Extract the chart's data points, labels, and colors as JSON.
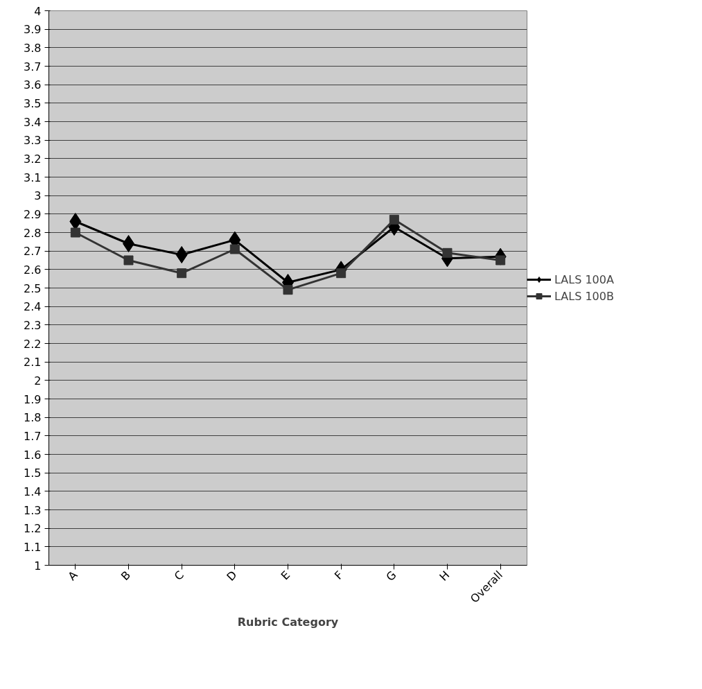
{
  "chart_data": {
    "type": "line",
    "xlabel": "Rubric Category",
    "categories": [
      "A",
      "B",
      "C",
      "D",
      "E",
      "F",
      "G",
      "H",
      "Overall"
    ],
    "series": [
      {
        "name": "LALS 100A",
        "color": "#000000",
        "marker": "diamond",
        "values": [
          2.86,
          2.74,
          2.68,
          2.76,
          2.53,
          2.6,
          2.83,
          2.66,
          2.67
        ]
      },
      {
        "name": "LALS 100B",
        "color": "#333333",
        "marker": "square",
        "values": [
          2.8,
          2.65,
          2.58,
          2.71,
          2.49,
          2.58,
          2.87,
          2.69,
          2.65
        ]
      }
    ],
    "ylim": [
      1,
      4
    ],
    "yticks": [
      1,
      1.1,
      1.2,
      1.3,
      1.4,
      1.5,
      1.6,
      1.7,
      1.8,
      1.9,
      2,
      2.1,
      2.2,
      2.3,
      2.4,
      2.5,
      2.6,
      2.7,
      2.8,
      2.9,
      3,
      3.1,
      3.2,
      3.3,
      3.4,
      3.5,
      3.6,
      3.7,
      3.8,
      3.9,
      4
    ],
    "grid": "y",
    "legend": "right",
    "line_style": "solid"
  }
}
